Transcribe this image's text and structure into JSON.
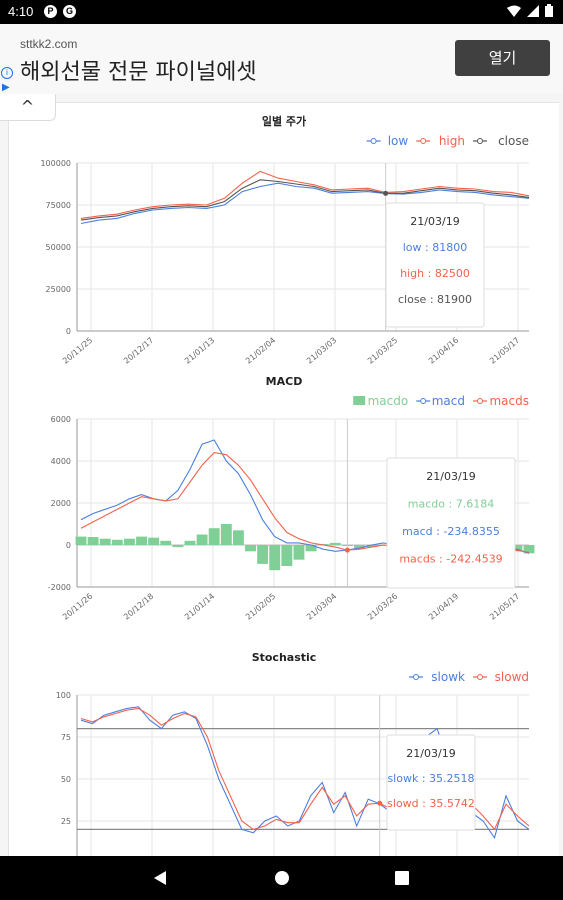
{
  "status_bar": {
    "time": "4:10",
    "notif_icons": [
      "P",
      "G"
    ]
  },
  "ad": {
    "domain": "sttkk2.com",
    "title": "해외선물 전문 파이널에셋",
    "open_label": "열기",
    "info_icon": "i"
  },
  "collapse_icon": "^",
  "colors": {
    "low": "#4a7fe0",
    "high": "#f4624a",
    "close": "#555555",
    "macdo": "#7fcf96",
    "macd": "#4a7fe0",
    "macds": "#f4624a",
    "slowk": "#4a7fe0",
    "slowd": "#f4624a"
  },
  "chart_data": [
    {
      "type": "line",
      "title": "일별 주가",
      "legend_position": "top-right",
      "ylim": [
        0,
        100000
      ],
      "yticks": [
        "100000",
        "75000",
        "50000",
        "25000",
        "0"
      ],
      "xticks": [
        "20/11/25",
        "20/12/17",
        "21/01/13",
        "21/02/04",
        "21/03/03",
        "21/03/25",
        "21/04/16",
        "21/05/17"
      ],
      "series": [
        {
          "name": "low",
          "values": [
            64000,
            66000,
            67000,
            70000,
            72000,
            73000,
            73500,
            73000,
            75000,
            83000,
            86000,
            88000,
            86000,
            85000,
            82000,
            82500,
            83000,
            81800,
            81500,
            82500,
            84000,
            83000,
            82500,
            81000,
            80000,
            79000
          ]
        },
        {
          "name": "high",
          "values": [
            67000,
            68500,
            69500,
            72000,
            74000,
            75000,
            75500,
            75000,
            79000,
            88000,
            95000,
            91000,
            89000,
            87000,
            84000,
            84500,
            85000,
            82500,
            83000,
            84500,
            86000,
            85000,
            84500,
            83000,
            82500,
            80500
          ]
        },
        {
          "name": "close",
          "values": [
            66000,
            67500,
            68500,
            71000,
            73000,
            74000,
            74500,
            74000,
            77000,
            85000,
            90000,
            89000,
            87500,
            86000,
            83000,
            83500,
            84000,
            81900,
            82000,
            83500,
            85000,
            84000,
            83500,
            82000,
            81000,
            79500
          ]
        }
      ],
      "tooltip": {
        "date": "21/03/19",
        "low": "low : 81800",
        "high": "high : 82500",
        "close": "close : 81900"
      }
    },
    {
      "type": "line",
      "title": "MACD",
      "legend_position": "top-right",
      "ylim": [
        -2000,
        6000
      ],
      "yticks": [
        "6000",
        "4000",
        "2000",
        "0",
        "-2000"
      ],
      "xticks": [
        "20/11/26",
        "20/12/18",
        "21/01/14",
        "21/02/05",
        "21/03/04",
        "21/03/26",
        "21/04/19",
        "21/05/17"
      ],
      "series": [
        {
          "name": "macdo",
          "values": [
            400,
            380,
            300,
            250,
            300,
            400,
            350,
            200,
            -100,
            200,
            500,
            800,
            1000,
            700,
            -300,
            -900,
            -1200,
            -1000,
            -700,
            -300,
            50,
            100,
            0,
            -150,
            -100,
            7.6,
            -50,
            -100,
            -150,
            -200,
            -250,
            -300,
            -350,
            -300,
            -250,
            -200,
            -300,
            -400
          ]
        },
        {
          "name": "macd",
          "values": [
            1200,
            1500,
            1700,
            1900,
            2200,
            2400,
            2200,
            2100,
            2600,
            3600,
            4800,
            5000,
            4000,
            3400,
            2400,
            1200,
            400,
            100,
            100,
            0,
            -200,
            -300,
            -234.8,
            -150,
            0,
            100,
            -50,
            -150,
            -100,
            0,
            100,
            50,
            0,
            -50,
            0,
            -100,
            -200,
            -400
          ]
        },
        {
          "name": "macds",
          "values": [
            800,
            1100,
            1400,
            1700,
            2000,
            2300,
            2200,
            2100,
            2200,
            3000,
            3800,
            4400,
            4300,
            3800,
            3100,
            2200,
            1300,
            600,
            300,
            100,
            0,
            -100,
            -242.5,
            -200,
            -100,
            0,
            -50,
            -100,
            -100,
            -50,
            0,
            0,
            -50,
            -50,
            -100,
            -150,
            -250,
            -350
          ]
        }
      ],
      "tooltip": {
        "date": "21/03/19",
        "macdo": "macdo : 7.6184",
        "macd": "macd : -234.8355",
        "macds": "macds : -242.4539"
      }
    },
    {
      "type": "line",
      "title": "Stochastic",
      "legend_position": "top-right",
      "ylim": [
        0,
        100
      ],
      "yticks": [
        "100",
        "75",
        "50",
        "25",
        "0"
      ],
      "xticks": [],
      "reference_lines": [
        80,
        20
      ],
      "series": [
        {
          "name": "slowk",
          "values": [
            85,
            83,
            88,
            90,
            92,
            93,
            85,
            80,
            88,
            90,
            86,
            70,
            50,
            35,
            20,
            18,
            25,
            28,
            22,
            25,
            40,
            48,
            30,
            42,
            22,
            38,
            35.25,
            30,
            28,
            65,
            75,
            80,
            60,
            40,
            30,
            25,
            15,
            40,
            25,
            20
          ]
        },
        {
          "name": "slowd",
          "values": [
            86,
            84,
            87,
            89,
            91,
            92,
            88,
            82,
            86,
            89,
            87,
            75,
            55,
            40,
            25,
            20,
            22,
            26,
            24,
            24,
            35,
            45,
            35,
            40,
            28,
            35,
            35.57,
            32,
            30,
            55,
            68,
            75,
            65,
            45,
            35,
            28,
            20,
            35,
            28,
            22
          ]
        }
      ],
      "tooltip": {
        "date": "21/03/19",
        "slowk": "slowk : 35.2518",
        "slowd": "slowd : 35.5742"
      }
    }
  ]
}
